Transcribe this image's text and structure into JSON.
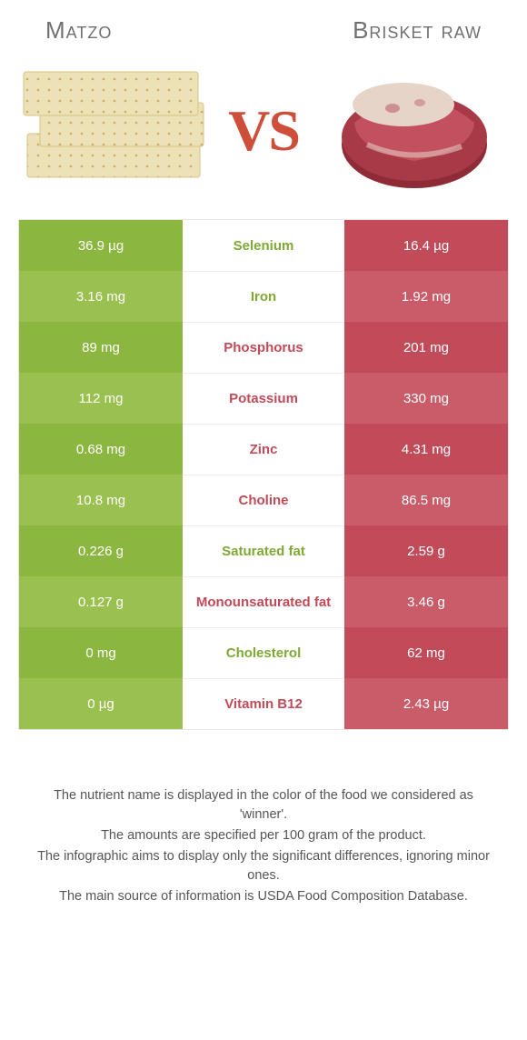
{
  "colors": {
    "green": "#8bb63f",
    "green_alt": "#9ac14f",
    "red": "#c14b59",
    "red_alt": "#ca5b68",
    "text_green": "#7ea934",
    "text_red": "#c14b59",
    "title_gray": "#707070",
    "body_text": "#555555",
    "vs_red": "#cf4e3a"
  },
  "left_food": "Matzo",
  "right_food": "Brisket raw",
  "vs_label": "VS",
  "rows": [
    {
      "nutrient": "Selenium",
      "left": "36.9 µg",
      "right": "16.4 µg",
      "winner": "left"
    },
    {
      "nutrient": "Iron",
      "left": "3.16 mg",
      "right": "1.92 mg",
      "winner": "left"
    },
    {
      "nutrient": "Phosphorus",
      "left": "89 mg",
      "right": "201 mg",
      "winner": "right"
    },
    {
      "nutrient": "Potassium",
      "left": "112 mg",
      "right": "330 mg",
      "winner": "right"
    },
    {
      "nutrient": "Zinc",
      "left": "0.68 mg",
      "right": "4.31 mg",
      "winner": "right"
    },
    {
      "nutrient": "Choline",
      "left": "10.8 mg",
      "right": "86.5 mg",
      "winner": "right"
    },
    {
      "nutrient": "Saturated fat",
      "left": "0.226 g",
      "right": "2.59 g",
      "winner": "left"
    },
    {
      "nutrient": "Monounsaturated fat",
      "left": "0.127 g",
      "right": "3.46 g",
      "winner": "right"
    },
    {
      "nutrient": "Cholesterol",
      "left": "0 mg",
      "right": "62 mg",
      "winner": "left"
    },
    {
      "nutrient": "Vitamin B12",
      "left": "0 µg",
      "right": "2.43 µg",
      "winner": "right"
    }
  ],
  "footnotes": [
    "The nutrient name is displayed in the color of the food we considered as 'winner'.",
    "The amounts are specified per 100 gram of the product.",
    "The infographic aims to display only the significant differences, ignoring minor ones.",
    "The main source of information is USDA Food Composition Database."
  ]
}
